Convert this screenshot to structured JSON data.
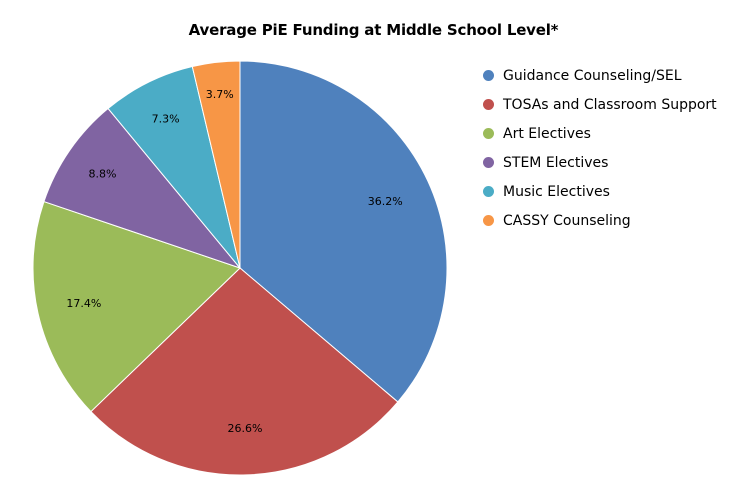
{
  "chart_data": {
    "type": "pie",
    "title": "Average PiE Funding at Middle School Level*",
    "legend_position": "right",
    "start_angle": "top",
    "direction": "clockwise",
    "slices": [
      {
        "name": "Guidance Counseling/SEL",
        "value": 36.2,
        "label": "36.2%",
        "color": "#4F81BD"
      },
      {
        "name": "TOSAs and Classroom Support",
        "value": 26.6,
        "label": "26.6%",
        "color": "#C0504D"
      },
      {
        "name": "Art Electives",
        "value": 17.4,
        "label": "17.4%",
        "color": "#9BBB59"
      },
      {
        "name": "STEM Electives",
        "value": 8.8,
        "label": "8.8%",
        "color": "#8064A2"
      },
      {
        "name": "Music Electives",
        "value": 7.3,
        "label": "7.3%",
        "color": "#4BACC6"
      },
      {
        "name": "CASSY Counseling",
        "value": 3.7,
        "label": "3.7%",
        "color": "#F79646"
      }
    ]
  }
}
